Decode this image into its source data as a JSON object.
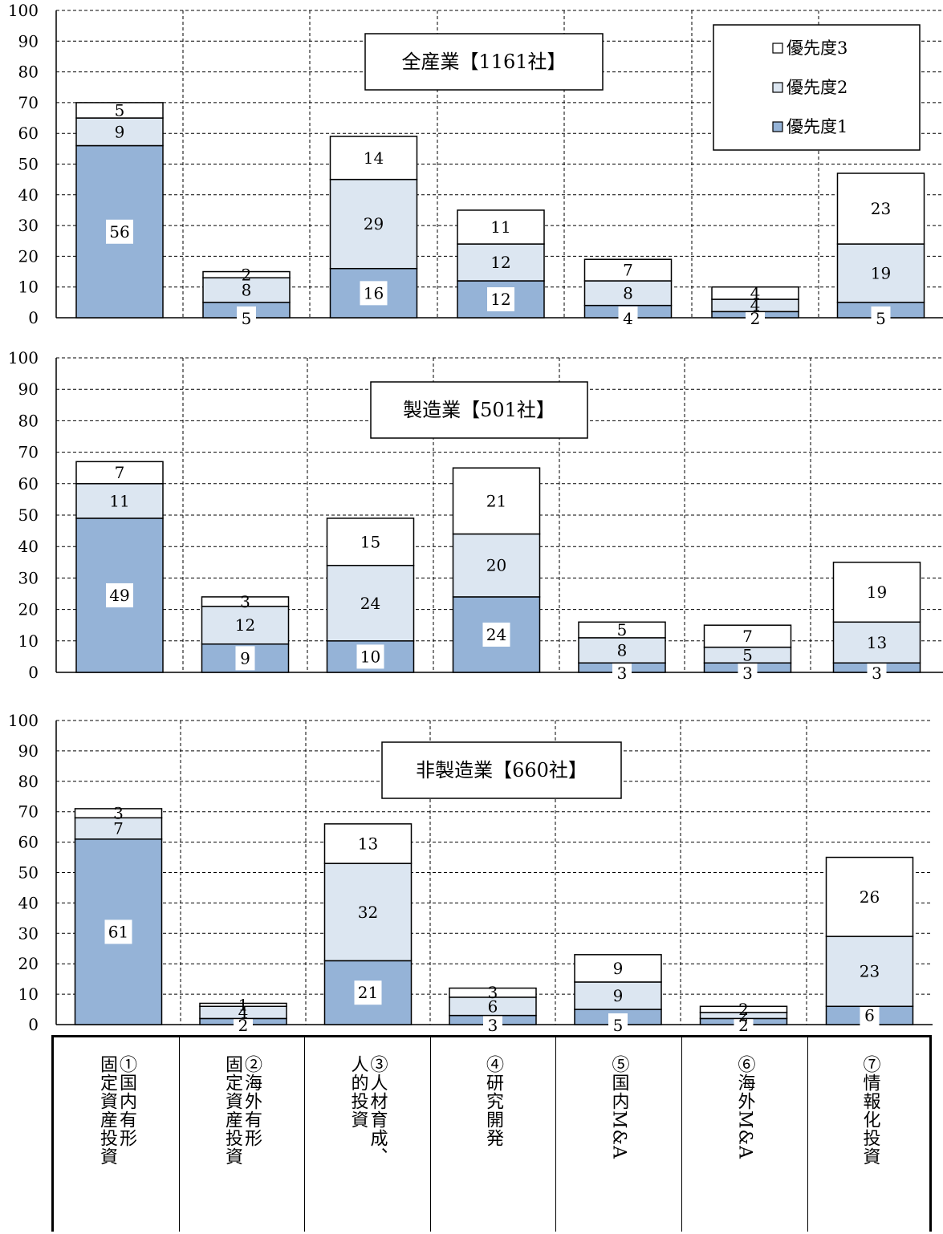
{
  "legend": {
    "items": [
      "優先度3",
      "優先度2",
      "優先度1"
    ]
  },
  "categories": [
    {
      "lines": [
        "①国内有形",
        "固定資産投資"
      ]
    },
    {
      "lines": [
        "②海外有形",
        "固定資産投資"
      ]
    },
    {
      "lines": [
        "③人材育成、",
        "人的投資"
      ]
    },
    {
      "lines": [
        "④研究開発"
      ]
    },
    {
      "lines": [
        "⑤国内M&A"
      ]
    },
    {
      "lines": [
        "⑥海外M&A"
      ]
    },
    {
      "lines": [
        "⑦情報化投資"
      ]
    }
  ],
  "colors": {
    "p1": "#95b3d7",
    "p2": "#dce6f1",
    "p3": "#ffffff",
    "grid": "#000000"
  },
  "chart_data": [
    {
      "type": "bar",
      "stacked": true,
      "title": "全産業【1161社】",
      "ylim": [
        0,
        100
      ],
      "yticks": [
        0,
        10,
        20,
        30,
        40,
        50,
        60,
        70,
        80,
        90,
        100
      ],
      "grid": true,
      "legend_position": "top-right",
      "series": [
        {
          "name": "優先度1",
          "values": [
            56,
            5,
            16,
            12,
            4,
            2,
            5
          ]
        },
        {
          "name": "優先度2",
          "values": [
            9,
            8,
            29,
            12,
            8,
            4,
            19
          ]
        },
        {
          "name": "優先度3",
          "values": [
            5,
            2,
            14,
            11,
            7,
            4,
            23
          ]
        }
      ]
    },
    {
      "type": "bar",
      "stacked": true,
      "title": "製造業【501社】",
      "ylim": [
        0,
        100
      ],
      "yticks": [
        0,
        10,
        20,
        30,
        40,
        50,
        60,
        70,
        80,
        90,
        100
      ],
      "grid": true,
      "series": [
        {
          "name": "優先度1",
          "values": [
            49,
            9,
            10,
            24,
            3,
            3,
            3
          ]
        },
        {
          "name": "優先度2",
          "values": [
            11,
            12,
            24,
            20,
            8,
            5,
            13
          ]
        },
        {
          "name": "優先度3",
          "values": [
            7,
            3,
            15,
            21,
            5,
            7,
            19
          ]
        }
      ]
    },
    {
      "type": "bar",
      "stacked": true,
      "title": "非製造業【660社】",
      "ylim": [
        0,
        100
      ],
      "yticks": [
        0,
        10,
        20,
        30,
        40,
        50,
        60,
        70,
        80,
        90,
        100
      ],
      "grid": true,
      "series": [
        {
          "name": "優先度1",
          "values": [
            61,
            2,
            21,
            3,
            5,
            2,
            6
          ]
        },
        {
          "name": "優先度2",
          "values": [
            7,
            4,
            32,
            6,
            9,
            2,
            23
          ]
        },
        {
          "name": "優先度3",
          "values": [
            3,
            1,
            13,
            3,
            9,
            2,
            26
          ]
        }
      ]
    }
  ]
}
